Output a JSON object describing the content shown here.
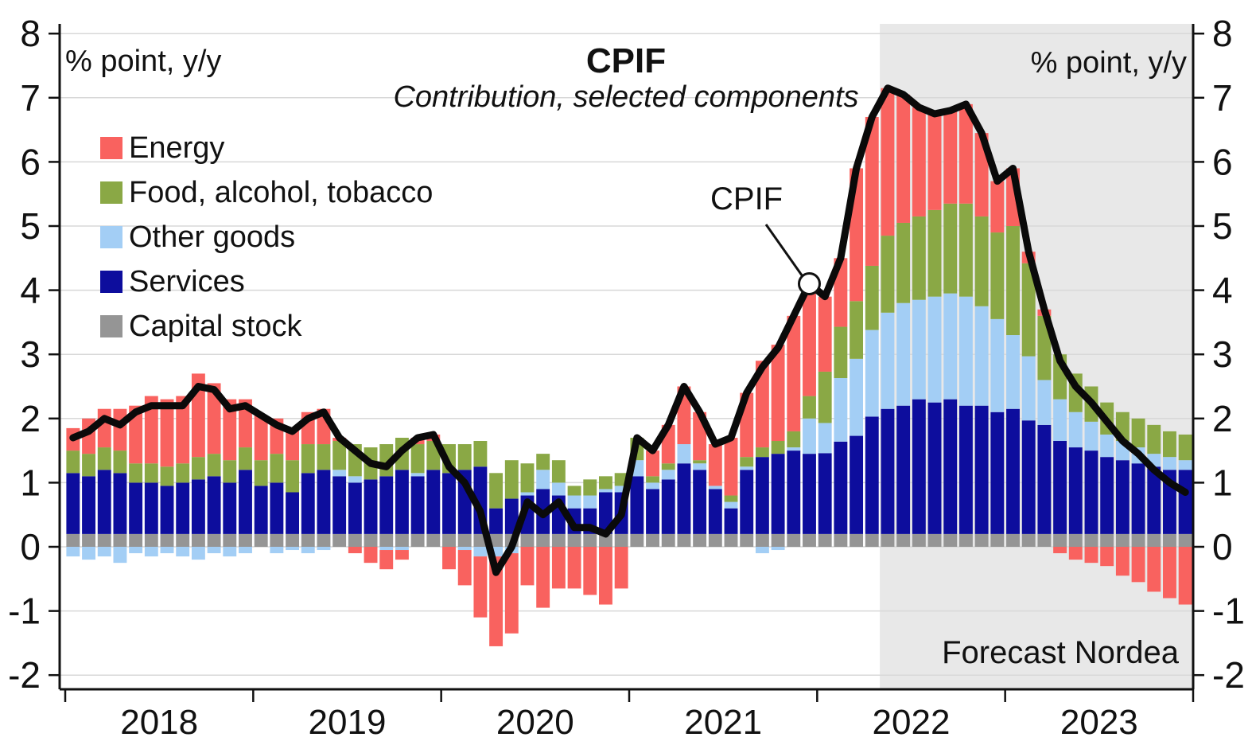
{
  "header": {
    "title": "CPIF",
    "subtitle": "Contribution, selected components"
  },
  "axis_units": {
    "left": "% point, y/y",
    "right": "% point, y/y"
  },
  "annotations": {
    "line_label": "CPIF",
    "forecast_label": "Forecast Nordea"
  },
  "chart_data": {
    "type": "bar",
    "stacked": true,
    "title": "CPIF",
    "subtitle": "Contribution, selected components",
    "ylabel": "% point, y/y",
    "ylim": [
      -2.22,
      8.15
    ],
    "y_ticks": [
      -2,
      -1,
      0,
      1,
      2,
      3,
      4,
      5,
      6,
      7,
      8
    ],
    "grid": true,
    "x_years": [
      "2018",
      "2019",
      "2020",
      "2021",
      "2022",
      "2023"
    ],
    "months_per_year": 12,
    "forecast_start_index": 52,
    "forecast_bg_color": "#e8e8e8",
    "grid_color": "#d8d8d8",
    "axis_color": "#111111",
    "series": [
      {
        "name": "Capital stock",
        "color": "#959595",
        "values": [
          0.2,
          0.2,
          0.2,
          0.2,
          0.2,
          0.2,
          0.2,
          0.2,
          0.2,
          0.2,
          0.2,
          0.2,
          0.2,
          0.2,
          0.2,
          0.2,
          0.2,
          0.2,
          0.2,
          0.2,
          0.2,
          0.2,
          0.2,
          0.2,
          0.2,
          0.2,
          0.2,
          0.2,
          0.2,
          0.2,
          0.2,
          0.2,
          0.2,
          0.2,
          0.2,
          0.2,
          0.2,
          0.2,
          0.2,
          0.2,
          0.2,
          0.2,
          0.2,
          0.2,
          0.2,
          0.2,
          0.2,
          0.2,
          0.2,
          0.2,
          0.2,
          0.2,
          0.2,
          0.2,
          0.2,
          0.2,
          0.2,
          0.2,
          0.2,
          0.2,
          0.2,
          0.2,
          0.2,
          0.2,
          0.2,
          0.2,
          0.2,
          0.2,
          0.2,
          0.2,
          0.2,
          0.2
        ]
      },
      {
        "name": "Services",
        "color": "#0d0d9d",
        "values": [
          0.95,
          0.9,
          1.0,
          0.95,
          0.8,
          0.8,
          0.75,
          0.8,
          0.85,
          0.9,
          0.8,
          1.0,
          0.75,
          0.8,
          0.65,
          0.95,
          1.0,
          0.9,
          0.8,
          0.85,
          0.9,
          1.0,
          0.9,
          1.0,
          0.95,
          1.0,
          1.05,
          0.4,
          0.55,
          0.6,
          0.7,
          0.6,
          0.4,
          0.4,
          0.65,
          0.65,
          0.9,
          0.7,
          0.85,
          1.1,
          1.0,
          0.7,
          0.4,
          1.0,
          1.2,
          1.25,
          1.3,
          1.25,
          1.26,
          1.44,
          1.53,
          1.83,
          1.95,
          2.0,
          2.1,
          2.05,
          2.1,
          2.0,
          2.0,
          1.9,
          1.95,
          1.77,
          1.7,
          1.45,
          1.35,
          1.3,
          1.2,
          1.15,
          1.1,
          1.05,
          1.0,
          1.0
        ]
      },
      {
        "name": "Other goods",
        "color": "#a3cef5",
        "values": [
          -0.15,
          -0.2,
          -0.15,
          -0.25,
          -0.1,
          -0.15,
          -0.1,
          -0.15,
          -0.2,
          -0.1,
          -0.15,
          -0.1,
          0.0,
          -0.1,
          -0.05,
          -0.1,
          -0.05,
          0.1,
          0.1,
          0.0,
          -0.05,
          -0.05,
          0.05,
          0.0,
          0.0,
          -0.05,
          -0.15,
          -0.15,
          -0.1,
          0.05,
          0.3,
          0.2,
          0.2,
          0.2,
          0.05,
          0.1,
          0.25,
          0.1,
          0.15,
          0.3,
          0.1,
          0.05,
          0.1,
          0.05,
          -0.1,
          -0.05,
          0.05,
          0.55,
          0.47,
          0.99,
          1.2,
          1.35,
          1.5,
          1.6,
          1.55,
          1.65,
          1.65,
          1.7,
          1.55,
          1.45,
          1.15,
          1.0,
          0.7,
          0.65,
          0.55,
          0.45,
          0.35,
          0.3,
          0.25,
          0.2,
          0.2,
          0.15
        ]
      },
      {
        "name": "Food, alcohol, tobacco",
        "color": "#8aa845",
        "values": [
          0.35,
          0.35,
          0.35,
          0.35,
          0.3,
          0.3,
          0.3,
          0.3,
          0.35,
          0.35,
          0.35,
          0.35,
          0.4,
          0.45,
          0.5,
          0.45,
          0.4,
          0.45,
          0.5,
          0.5,
          0.5,
          0.5,
          0.45,
          0.45,
          0.45,
          0.4,
          0.4,
          0.55,
          0.6,
          0.45,
          0.25,
          0.35,
          0.15,
          0.25,
          0.2,
          0.2,
          0.35,
          0.1,
          0.1,
          0.0,
          0.05,
          0.0,
          0.1,
          0.15,
          0.15,
          0.2,
          0.25,
          0.35,
          0.8,
          0.8,
          0.9,
          1.0,
          1.2,
          1.25,
          1.3,
          1.35,
          1.4,
          1.45,
          1.4,
          1.35,
          1.7,
          1.45,
          1.0,
          0.7,
          0.6,
          0.55,
          0.5,
          0.45,
          0.45,
          0.45,
          0.4,
          0.4
        ]
      },
      {
        "name": "Energy",
        "color": "#f9625f",
        "values": [
          0.35,
          0.55,
          0.6,
          0.65,
          0.9,
          1.05,
          1.05,
          1.05,
          1.3,
          1.1,
          0.95,
          0.75,
          0.7,
          0.55,
          0.5,
          0.5,
          0.55,
          0.05,
          -0.1,
          -0.25,
          -0.3,
          -0.15,
          0.1,
          0.1,
          -0.35,
          -0.55,
          -0.95,
          -1.4,
          -1.25,
          -0.6,
          -0.95,
          -0.65,
          -0.65,
          -0.75,
          -0.9,
          -0.65,
          0.0,
          0.4,
          0.6,
          0.9,
          0.75,
          0.65,
          0.9,
          1.0,
          1.35,
          1.5,
          1.8,
          1.75,
          1.17,
          1.07,
          2.07,
          2.32,
          2.3,
          2.0,
          1.7,
          1.5,
          1.45,
          1.55,
          1.3,
          0.8,
          0.9,
          0.18,
          0.1,
          -0.1,
          -0.2,
          -0.25,
          -0.3,
          -0.45,
          -0.55,
          -0.7,
          -0.8,
          -0.9
        ]
      }
    ],
    "line_series": {
      "name": "CPIF",
      "color": "#0a0a0a",
      "values": [
        1.7,
        1.8,
        2.0,
        1.9,
        2.1,
        2.2,
        2.2,
        2.2,
        2.5,
        2.45,
        2.15,
        2.2,
        2.05,
        1.9,
        1.8,
        2.0,
        2.1,
        1.7,
        1.5,
        1.3,
        1.25,
        1.5,
        1.7,
        1.75,
        1.25,
        1.0,
        0.55,
        -0.4,
        0.0,
        0.7,
        0.5,
        0.7,
        0.3,
        0.3,
        0.2,
        0.5,
        1.7,
        1.5,
        1.9,
        2.5,
        2.1,
        1.6,
        1.7,
        2.4,
        2.8,
        3.1,
        3.6,
        4.1,
        3.9,
        4.5,
        5.9,
        6.7,
        7.15,
        7.05,
        6.85,
        6.75,
        6.8,
        6.9,
        6.45,
        5.7,
        5.9,
        4.6,
        3.7,
        2.9,
        2.5,
        2.25,
        1.95,
        1.65,
        1.45,
        1.2,
        1.0,
        0.85
      ]
    },
    "annotation_point": {
      "month_index": 47,
      "value": 4.1
    },
    "legend_order": [
      4,
      3,
      2,
      1,
      0
    ],
    "legend_position": "upper-left"
  }
}
